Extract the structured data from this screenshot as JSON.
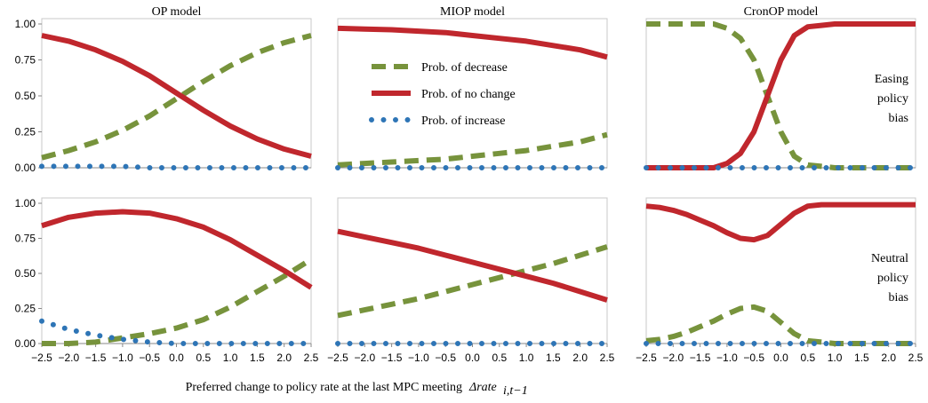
{
  "xlabel": "Preferred change to policy rate at the last MPC meeting",
  "xlabel_symbol": "Δrate",
  "xlabel_subscript": "i,t−1",
  "chart_data": [
    {
      "type": "line",
      "title": "OP model",
      "x": [
        -2.5,
        -2,
        -1.5,
        -1,
        -0.5,
        0,
        0.5,
        1,
        1.5,
        2,
        2.5
      ],
      "xlim": [
        -2.5,
        2.5
      ],
      "ylim": [
        0,
        1
      ],
      "yticks": [
        {
          "value": 0,
          "label": "0.00"
        },
        {
          "value": 0.25,
          "label": "0.25"
        },
        {
          "value": 0.5,
          "label": "0.50"
        },
        {
          "value": 0.75,
          "label": "0.75"
        },
        {
          "value": 1,
          "label": "1.00"
        }
      ],
      "series": [
        {
          "color": "#77933c",
          "style": "dashed",
          "values": [
            0.07,
            0.12,
            0.18,
            0.26,
            0.36,
            0.48,
            0.6,
            0.71,
            0.8,
            0.87,
            0.92
          ]
        },
        {
          "color": "#c0272d",
          "style": "solid",
          "values": [
            0.92,
            0.88,
            0.82,
            0.74,
            0.64,
            0.52,
            0.4,
            0.29,
            0.2,
            0.13,
            0.08
          ]
        },
        {
          "color": "#2e75b6",
          "style": "dotted",
          "values": [
            0.01,
            0.01,
            0.01,
            0.01,
            0,
            0,
            0,
            0,
            0,
            0,
            0
          ]
        }
      ]
    },
    {
      "type": "line",
      "title": "MIOP model",
      "x": [
        -2.5,
        -2,
        -1.5,
        -1,
        -0.5,
        0,
        0.5,
        1,
        1.5,
        2,
        2.5
      ],
      "xlim": [
        -2.5,
        2.5
      ],
      "ylim": [
        0,
        1
      ],
      "legend": "upper-left",
      "series": [
        {
          "name": "Prob. of decrease",
          "color": "#77933c",
          "style": "dashed",
          "values": [
            0.02,
            0.03,
            0.04,
            0.05,
            0.06,
            0.08,
            0.1,
            0.12,
            0.15,
            0.18,
            0.23
          ]
        },
        {
          "name": "Prob. of no change",
          "color": "#c0272d",
          "style": "solid",
          "values": [
            0.97,
            0.965,
            0.96,
            0.95,
            0.94,
            0.92,
            0.9,
            0.88,
            0.85,
            0.82,
            0.77
          ]
        },
        {
          "name": "Prob. of increase",
          "color": "#2e75b6",
          "style": "dotted",
          "values": [
            0,
            0,
            0,
            0,
            0,
            0,
            0,
            0,
            0,
            0,
            0
          ]
        }
      ]
    },
    {
      "type": "line",
      "title": "CronOP model",
      "annotation": [
        "Easing",
        "policy",
        "bias"
      ],
      "x": [
        -2.5,
        -2.25,
        -2,
        -1.75,
        -1.5,
        -1.25,
        -1,
        -0.75,
        -0.5,
        -0.25,
        0,
        0.25,
        0.5,
        0.75,
        1,
        1.25,
        1.5,
        1.75,
        2,
        2.25,
        2.5
      ],
      "xlim": [
        -2.5,
        2.5
      ],
      "ylim": [
        0,
        1
      ],
      "series": [
        {
          "color": "#77933c",
          "style": "dashed",
          "values": [
            1,
            1,
            1,
            1,
            1,
            1,
            0.97,
            0.9,
            0.75,
            0.5,
            0.25,
            0.08,
            0.02,
            0.01,
            0,
            0,
            0,
            0,
            0,
            0,
            0
          ]
        },
        {
          "color": "#c0272d",
          "style": "solid",
          "values": [
            0,
            0,
            0,
            0,
            0,
            0,
            0.03,
            0.1,
            0.25,
            0.5,
            0.75,
            0.92,
            0.98,
            0.99,
            1,
            1,
            1,
            1,
            1,
            1,
            1
          ]
        },
        {
          "color": "#2e75b6",
          "style": "dotted",
          "values": [
            0,
            0,
            0,
            0,
            0,
            0,
            0,
            0,
            0,
            0,
            0,
            0,
            0,
            0,
            0,
            0,
            0,
            0,
            0,
            0,
            0
          ]
        }
      ]
    },
    {
      "type": "line",
      "x": [
        -2.5,
        -2,
        -1.5,
        -1,
        -0.5,
        0,
        0.5,
        1,
        1.5,
        2,
        2.5
      ],
      "xlim": [
        -2.5,
        2.5
      ],
      "ylim": [
        0,
        1
      ],
      "yticks": [
        {
          "value": 0,
          "label": "0.00"
        },
        {
          "value": 0.25,
          "label": "0.25"
        },
        {
          "value": 0.5,
          "label": "0.50"
        },
        {
          "value": 0.75,
          "label": "0.75"
        },
        {
          "value": 1,
          "label": "1.00"
        }
      ],
      "xticks": [
        {
          "value": -2.5,
          "label": "−2.5"
        },
        {
          "value": -2,
          "label": "−2.0"
        },
        {
          "value": -1.5,
          "label": "−1.5"
        },
        {
          "value": -1,
          "label": "−1.0"
        },
        {
          "value": -0.5,
          "label": "−0.5"
        },
        {
          "value": 0,
          "label": "0.0"
        },
        {
          "value": 0.5,
          "label": "0.5"
        },
        {
          "value": 1,
          "label": "1.0"
        },
        {
          "value": 1.5,
          "label": "1.5"
        },
        {
          "value": 2,
          "label": "2.0"
        },
        {
          "value": 2.5,
          "label": "2.5"
        }
      ],
      "series": [
        {
          "color": "#77933c",
          "style": "dashed",
          "values": [
            0,
            0,
            0.01,
            0.04,
            0.07,
            0.11,
            0.17,
            0.26,
            0.37,
            0.48,
            0.6
          ]
        },
        {
          "color": "#c0272d",
          "style": "solid",
          "values": [
            0.84,
            0.9,
            0.93,
            0.94,
            0.93,
            0.89,
            0.83,
            0.74,
            0.63,
            0.52,
            0.4
          ]
        },
        {
          "color": "#2e75b6",
          "style": "dotted",
          "values": [
            0.16,
            0.1,
            0.06,
            0.03,
            0.01,
            0,
            0,
            0,
            0,
            0,
            0
          ]
        }
      ]
    },
    {
      "type": "line",
      "x": [
        -2.5,
        -2,
        -1.5,
        -1,
        -0.5,
        0,
        0.5,
        1,
        1.5,
        2,
        2.5
      ],
      "xlim": [
        -2.5,
        2.5
      ],
      "ylim": [
        0,
        1
      ],
      "xticks": [
        {
          "value": -2.5,
          "label": "−2.5"
        },
        {
          "value": -2,
          "label": "−2.0"
        },
        {
          "value": -1.5,
          "label": "−1.5"
        },
        {
          "value": -1,
          "label": "−1.0"
        },
        {
          "value": -0.5,
          "label": "−0.5"
        },
        {
          "value": 0,
          "label": "0.0"
        },
        {
          "value": 0.5,
          "label": "0.5"
        },
        {
          "value": 1,
          "label": "1.0"
        },
        {
          "value": 1.5,
          "label": "1.5"
        },
        {
          "value": 2,
          "label": "2.0"
        },
        {
          "value": 2.5,
          "label": "2.5"
        }
      ],
      "series": [
        {
          "color": "#77933c",
          "style": "dashed",
          "values": [
            0.2,
            0.24,
            0.28,
            0.32,
            0.37,
            0.42,
            0.47,
            0.52,
            0.57,
            0.63,
            0.69
          ]
        },
        {
          "color": "#c0272d",
          "style": "solid",
          "values": [
            0.8,
            0.76,
            0.72,
            0.68,
            0.63,
            0.58,
            0.53,
            0.48,
            0.43,
            0.37,
            0.31
          ]
        },
        {
          "color": "#2e75b6",
          "style": "dotted",
          "values": [
            0,
            0,
            0,
            0,
            0,
            0,
            0,
            0,
            0,
            0,
            0
          ]
        }
      ]
    },
    {
      "type": "line",
      "annotation": [
        "Neutral",
        "policy",
        "bias"
      ],
      "x": [
        -2.5,
        -2.25,
        -2,
        -1.75,
        -1.5,
        -1.25,
        -1,
        -0.75,
        -0.5,
        -0.25,
        0,
        0.25,
        0.5,
        0.75,
        1,
        1.25,
        1.5,
        1.75,
        2,
        2.25,
        2.5
      ],
      "xlim": [
        -2.5,
        2.5
      ],
      "ylim": [
        0,
        1
      ],
      "xticks": [
        {
          "value": -2.5,
          "label": "−2.5"
        },
        {
          "value": -2,
          "label": "−2.0"
        },
        {
          "value": -1.5,
          "label": "−1.5"
        },
        {
          "value": -1,
          "label": "−1.0"
        },
        {
          "value": -0.5,
          "label": "−0.5"
        },
        {
          "value": 0,
          "label": "0.0"
        },
        {
          "value": 0.5,
          "label": "0.5"
        },
        {
          "value": 1,
          "label": "1.0"
        },
        {
          "value": 1.5,
          "label": "1.5"
        },
        {
          "value": 2,
          "label": "2.0"
        },
        {
          "value": 2.5,
          "label": "2.5"
        }
      ],
      "series": [
        {
          "color": "#77933c",
          "style": "dashed",
          "values": [
            0.02,
            0.03,
            0.05,
            0.08,
            0.12,
            0.16,
            0.21,
            0.25,
            0.26,
            0.23,
            0.15,
            0.07,
            0.02,
            0.01,
            0,
            0,
            0,
            0,
            0,
            0,
            0
          ]
        },
        {
          "color": "#c0272d",
          "style": "solid",
          "values": [
            0.98,
            0.97,
            0.95,
            0.92,
            0.88,
            0.84,
            0.79,
            0.75,
            0.74,
            0.77,
            0.85,
            0.93,
            0.98,
            0.99,
            0.99,
            0.99,
            0.99,
            0.99,
            0.99,
            0.99,
            0.99
          ]
        },
        {
          "color": "#2e75b6",
          "style": "dotted",
          "values": [
            0,
            0,
            0,
            0,
            0,
            0,
            0,
            0,
            0,
            0,
            0,
            0,
            0,
            0,
            0,
            0,
            0,
            0,
            0,
            0,
            0
          ]
        }
      ]
    }
  ]
}
